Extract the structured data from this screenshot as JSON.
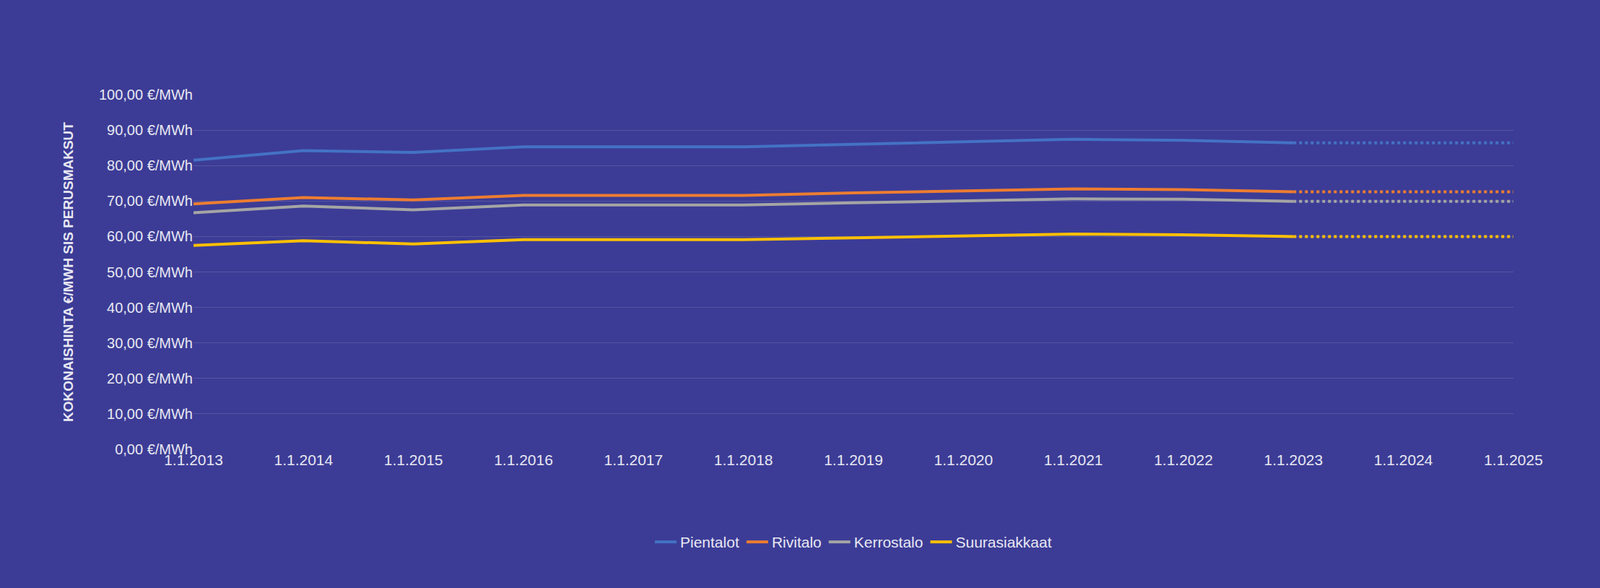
{
  "chart_data": {
    "type": "line",
    "y_label": "KOKONAISHINTA €/MWH SIS PERUSMAKSUT",
    "categories": [
      "1.1.2013",
      "1.1.2014",
      "1.1.2015",
      "1.1.2016",
      "1.1.2017",
      "1.1.2018",
      "1.1.2019",
      "1.1.2020",
      "1.1.2021",
      "1.1.2022",
      "1.1.2023",
      "1.1.2024",
      "1.1.2025"
    ],
    "series": [
      {
        "name": "Pientalot",
        "color": "#4472c4",
        "line_style": "solid",
        "values": [
          81.5,
          84.2,
          83.7,
          85.3,
          85.3,
          85.3,
          86.0,
          86.8,
          87.4,
          87.1,
          86.4,
          null,
          null
        ],
        "projected": {
          "line_style": "dotted",
          "values": [
            null,
            null,
            null,
            null,
            null,
            null,
            null,
            null,
            null,
            null,
            86.4,
            86.4,
            86.4
          ]
        }
      },
      {
        "name": "Rivitalo",
        "color": "#ed7d31",
        "line_style": "solid",
        "values": [
          69.2,
          71.0,
          70.3,
          71.6,
          71.6,
          71.6,
          72.3,
          72.9,
          73.4,
          73.2,
          72.6,
          null,
          null
        ],
        "projected": {
          "line_style": "dotted",
          "values": [
            null,
            null,
            null,
            null,
            null,
            null,
            null,
            null,
            null,
            null,
            72.6,
            72.6,
            72.6
          ]
        }
      },
      {
        "name": "Kerrostalo",
        "color": "#a5a5a5",
        "line_style": "solid",
        "values": [
          66.7,
          68.6,
          67.5,
          68.9,
          68.9,
          68.9,
          69.5,
          70.1,
          70.6,
          70.5,
          69.9,
          null,
          null
        ],
        "projected": {
          "line_style": "dotted",
          "values": [
            null,
            null,
            null,
            null,
            null,
            null,
            null,
            null,
            null,
            null,
            69.9,
            69.9,
            69.9
          ]
        }
      },
      {
        "name": "Suurasiakkaat",
        "color": "#ffc000",
        "line_style": "solid",
        "values": [
          57.5,
          58.8,
          57.9,
          59.1,
          59.1,
          59.1,
          59.6,
          60.2,
          60.7,
          60.5,
          60.0,
          null,
          null
        ],
        "projected": {
          "line_style": "dotted",
          "values": [
            null,
            null,
            null,
            null,
            null,
            null,
            null,
            null,
            null,
            null,
            60.0,
            60.0,
            60.0
          ]
        }
      }
    ],
    "ylim": [
      0,
      100
    ],
    "yticks": [
      {
        "value": 0,
        "label": "0,00 €/MWh"
      },
      {
        "value": 10,
        "label": "10,00 €/MWh"
      },
      {
        "value": 20,
        "label": "20,00 €/MWh"
      },
      {
        "value": 30,
        "label": "30,00 €/MWh"
      },
      {
        "value": 40,
        "label": "40,00 €/MWh"
      },
      {
        "value": 50,
        "label": "50,00 €/MWh"
      },
      {
        "value": 60,
        "label": "60,00 €/MWh"
      },
      {
        "value": 70,
        "label": "70,00 €/MWh"
      },
      {
        "value": 80,
        "label": "80,00 €/MWh"
      },
      {
        "value": 90,
        "label": "90,00 €/MWh"
      },
      {
        "value": 100,
        "label": "100,00 €/MWh"
      }
    ],
    "grid": true,
    "legend": "bottom"
  }
}
